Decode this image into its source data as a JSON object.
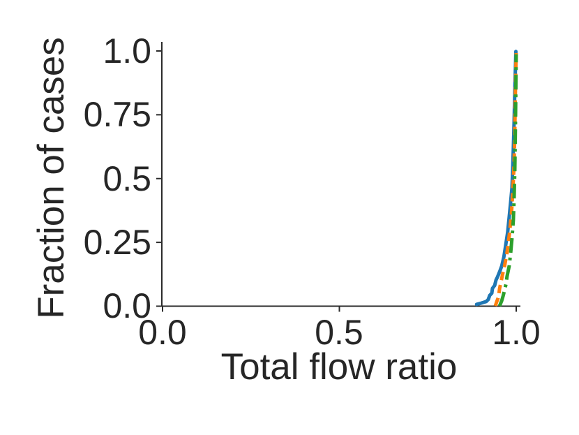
{
  "figure": {
    "background": "#ffffff",
    "text_color": "#262626",
    "spine_color": "#2b2b2b"
  },
  "chart_data": {
    "type": "line",
    "title": "",
    "xlabel": "Total flow ratio",
    "ylabel": "Fraction of cases",
    "xlim": [
      0.0,
      1.0
    ],
    "ylim": [
      0.0,
      1.0
    ],
    "xticks": [
      0.0,
      0.5,
      1.0
    ],
    "xtick_labels": [
      "0.0",
      "0.5",
      "1.0"
    ],
    "yticks": [
      0.0,
      0.25,
      0.5,
      0.75,
      1.0
    ],
    "ytick_labels": [
      "0.0",
      "0.25",
      "0.5",
      "0.75",
      "1.0"
    ],
    "grid": false,
    "legend": "none",
    "series": [
      {
        "name": "cdf-blue-solid",
        "color": "#1f77b4",
        "style": "solid",
        "points": [
          [
            0.888,
            0.007
          ],
          [
            0.901,
            0.012
          ],
          [
            0.915,
            0.018
          ],
          [
            0.921,
            0.026
          ],
          [
            0.925,
            0.042
          ],
          [
            0.931,
            0.051
          ],
          [
            0.933,
            0.07
          ],
          [
            0.939,
            0.081
          ],
          [
            0.943,
            0.103
          ],
          [
            0.947,
            0.114
          ],
          [
            0.953,
            0.135
          ],
          [
            0.959,
            0.157
          ],
          [
            0.965,
            0.193
          ],
          [
            0.97,
            0.237
          ],
          [
            0.976,
            0.291
          ],
          [
            0.98,
            0.349
          ],
          [
            0.984,
            0.404
          ],
          [
            0.988,
            0.464
          ],
          [
            0.99,
            0.535
          ],
          [
            0.992,
            0.62
          ],
          [
            0.994,
            0.726
          ],
          [
            0.996,
            0.85
          ],
          [
            0.998,
            0.945
          ],
          [
            0.999,
            0.998
          ]
        ]
      },
      {
        "name": "cdf-orange-dashed",
        "color": "#ff7f0e",
        "style": "dashed",
        "points": [
          [
            0.941,
            0.001
          ],
          [
            0.945,
            0.018
          ],
          [
            0.949,
            0.032
          ],
          [
            0.951,
            0.048
          ],
          [
            0.953,
            0.07
          ],
          [
            0.957,
            0.094
          ],
          [
            0.961,
            0.122
          ],
          [
            0.967,
            0.157
          ],
          [
            0.974,
            0.209
          ],
          [
            0.98,
            0.275
          ],
          [
            0.986,
            0.352
          ],
          [
            0.99,
            0.439
          ],
          [
            0.994,
            0.557
          ],
          [
            0.996,
            0.694
          ],
          [
            0.998,
            0.872
          ],
          [
            1.0,
            0.992
          ]
        ]
      },
      {
        "name": "cdf-green-dashdot",
        "color": "#2ca02c",
        "style": "dashdot",
        "points": [
          [
            0.953,
            0.001
          ],
          [
            0.959,
            0.021
          ],
          [
            0.963,
            0.04
          ],
          [
            0.967,
            0.062
          ],
          [
            0.971,
            0.086
          ],
          [
            0.974,
            0.116
          ],
          [
            0.98,
            0.157
          ],
          [
            0.984,
            0.204
          ],
          [
            0.988,
            0.264
          ],
          [
            0.992,
            0.338
          ],
          [
            0.994,
            0.426
          ],
          [
            0.996,
            0.535
          ],
          [
            0.998,
            0.735
          ],
          [
            1.0,
            0.987
          ]
        ]
      }
    ]
  }
}
